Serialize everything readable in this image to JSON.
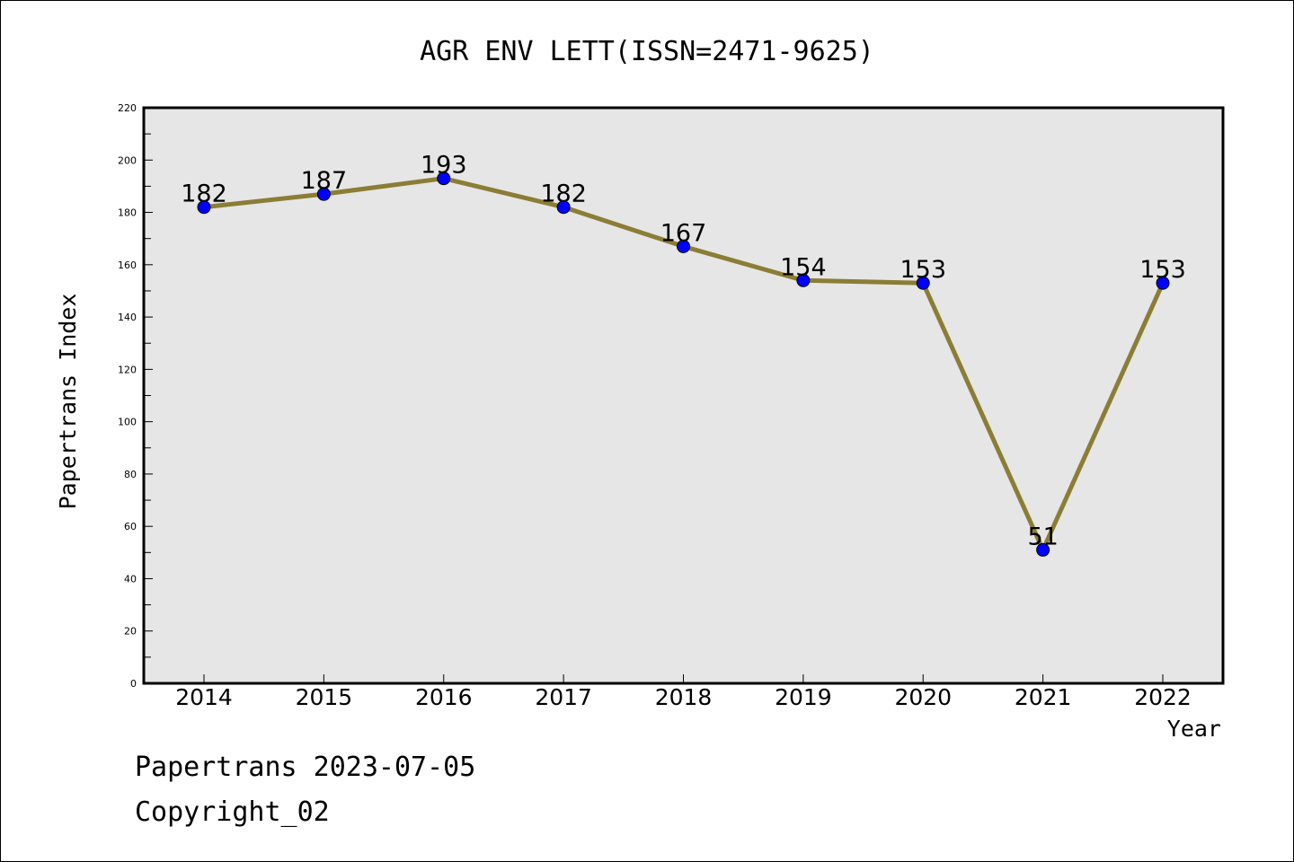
{
  "chart_data": {
    "type": "line",
    "title": "AGR ENV LETT(ISSN=2471-9625)",
    "xlabel": "Year",
    "ylabel": "Papertrans Index",
    "categories": [
      "2014",
      "2015",
      "2016",
      "2017",
      "2018",
      "2019",
      "2020",
      "2021",
      "2022"
    ],
    "series": [
      {
        "values": [
          182,
          187,
          193,
          182,
          167,
          154,
          153,
          51,
          153
        ]
      }
    ],
    "ylim": [
      0,
      220
    ],
    "yticks": [
      "0",
      "20",
      "40",
      "60",
      "80",
      "100",
      "120",
      "140",
      "160",
      "180",
      "200",
      "220"
    ],
    "grid": false,
    "line_color": "#8B7D35",
    "marker_color": "#0000FF",
    "plot_background": "#E6E6E6"
  },
  "footer": {
    "line1": "Papertrans 2023-07-05",
    "line2": "Copyright_02"
  }
}
